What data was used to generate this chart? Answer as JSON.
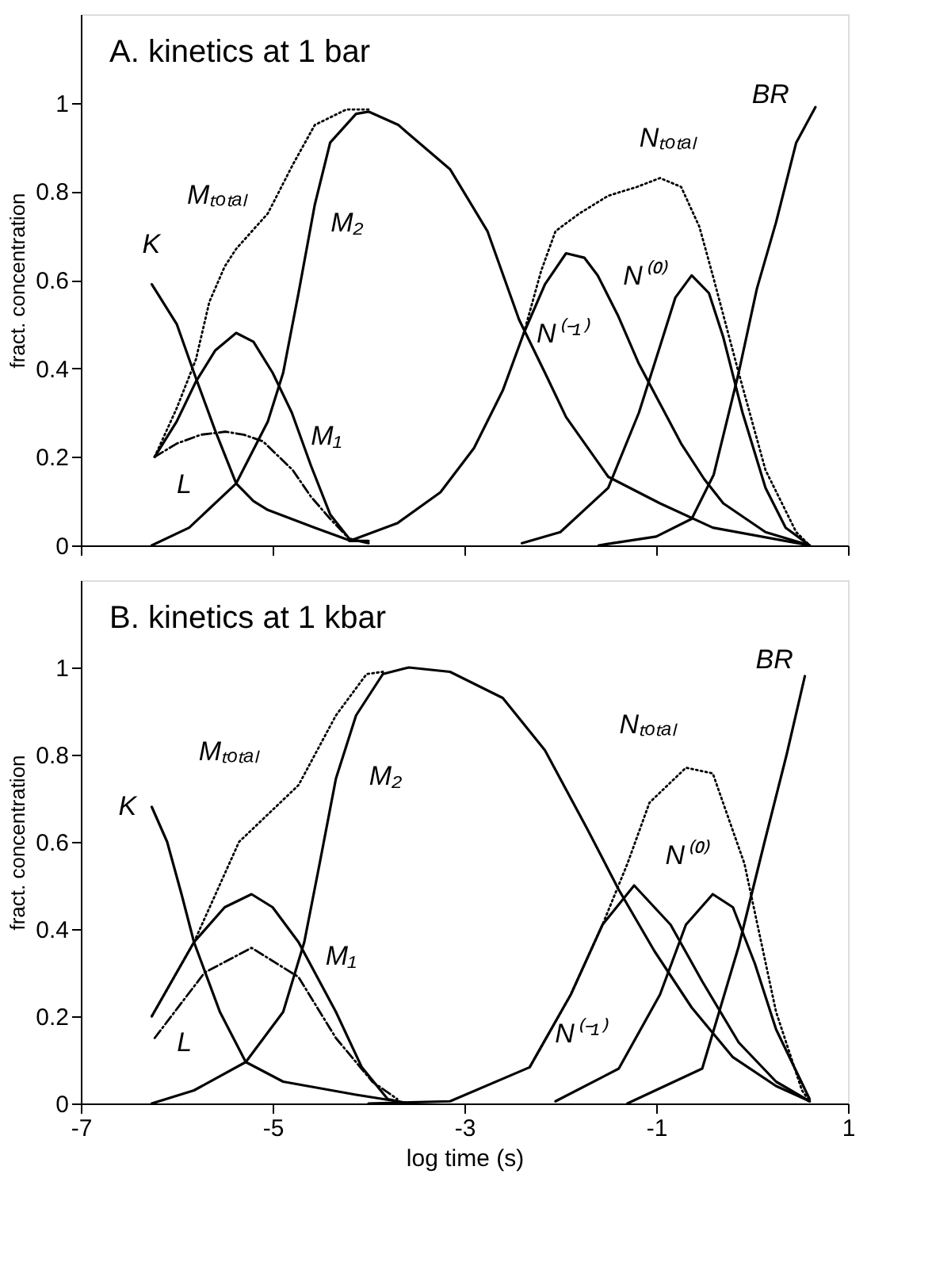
{
  "chart_data": [
    {
      "type": "line",
      "title": "A. kinetics at 1 bar",
      "ylabel": "fract. concentration",
      "xlim": [
        -7,
        1
      ],
      "ylim": [
        0,
        1.2
      ],
      "xticks": [
        -7,
        -5,
        -3,
        -1,
        1
      ],
      "yticks": [
        0,
        0.2,
        0.4,
        0.6,
        0.8,
        1
      ],
      "tick_labels": "y",
      "grid": false,
      "marker": "none",
      "series": [
        {
          "color": "#000000",
          "line_style": "solid",
          "x": [
            -6.26,
            -6.0,
            -5.82,
            -5.6,
            -5.38,
            -5.2,
            -5.05,
            -4.56,
            -4.18,
            -4.0
          ],
          "values": [
            0.59,
            0.5,
            0.39,
            0.26,
            0.14,
            0.1,
            0.08,
            0.04,
            0.01,
            0.01
          ]
        },
        {
          "color": "#000000",
          "line_style": "dashed",
          "x": [
            -6.23,
            -6.0,
            -5.75,
            -5.49,
            -5.3,
            -5.1,
            -4.79,
            -4.6,
            -4.4,
            -4.18
          ],
          "values": [
            0.2,
            0.23,
            0.25,
            0.257,
            0.25,
            0.235,
            0.17,
            0.11,
            0.06,
            0.01
          ]
        },
        {
          "color": "#000000",
          "line_style": "solid",
          "x": [
            -6.23,
            -6.0,
            -5.8,
            -5.6,
            -5.38,
            -5.2,
            -5.0,
            -4.8,
            -4.6,
            -4.4,
            -4.2,
            -4.0
          ],
          "values": [
            0.2,
            0.28,
            0.37,
            0.44,
            0.48,
            0.46,
            0.39,
            0.3,
            0.18,
            0.07,
            0.015,
            0.005
          ]
        },
        {
          "color": "#000000",
          "line_style": "solid",
          "x": [
            -6.26,
            -5.87,
            -5.38,
            -5.05,
            -4.89,
            -4.73,
            -4.56,
            -4.4,
            -4.13,
            -4.0,
            -3.69,
            -3.15,
            -2.76,
            -2.43,
            -2.16,
            -1.94,
            -1.5,
            -0.96,
            -0.41,
            0.6
          ],
          "values": [
            0.0,
            0.04,
            0.14,
            0.28,
            0.39,
            0.57,
            0.77,
            0.91,
            0.975,
            0.98,
            0.95,
            0.85,
            0.71,
            0.51,
            0.39,
            0.29,
            0.155,
            0.095,
            0.04,
            0.0
          ]
        },
        {
          "color": "#000000",
          "line_style": "dotted",
          "x": [
            -6.23,
            -6.0,
            -5.8,
            -5.66,
            -5.5,
            -5.38,
            -5.05,
            -4.79,
            -4.56,
            -4.23,
            -4.0
          ],
          "values": [
            0.2,
            0.31,
            0.42,
            0.55,
            0.63,
            0.67,
            0.75,
            0.86,
            0.95,
            0.985,
            0.985
          ]
        },
        {
          "color": "#000000",
          "line_style": "solid",
          "x": [
            -4.2,
            -3.7,
            -3.25,
            -2.9,
            -2.6,
            -2.38,
            -2.16,
            -1.94,
            -1.75,
            -1.61,
            -1.4,
            -1.18,
            -0.96,
            -0.74,
            -0.5,
            -0.3,
            0.14,
            0.6
          ],
          "values": [
            0.01,
            0.05,
            0.12,
            0.22,
            0.35,
            0.48,
            0.59,
            0.66,
            0.65,
            0.61,
            0.52,
            0.41,
            0.32,
            0.23,
            0.15,
            0.095,
            0.03,
            0.0
          ]
        },
        {
          "color": "#000000",
          "line_style": "dotted",
          "x": [
            -2.38,
            -2.2,
            -2.05,
            -1.8,
            -1.5,
            -1.2,
            -0.96,
            -0.74,
            -0.55,
            -0.41,
            -0.14,
            0.14,
            0.46,
            0.6
          ],
          "values": [
            0.48,
            0.62,
            0.71,
            0.75,
            0.79,
            0.81,
            0.83,
            0.81,
            0.72,
            0.61,
            0.39,
            0.17,
            0.03,
            0.0
          ]
        },
        {
          "color": "#000000",
          "line_style": "solid",
          "x": [
            -2.4,
            -2.0,
            -1.5,
            -1.18,
            -0.96,
            -0.8,
            -0.63,
            -0.45,
            -0.3,
            -0.1,
            0.14,
            0.35,
            0.6
          ],
          "values": [
            0.005,
            0.03,
            0.13,
            0.3,
            0.45,
            0.56,
            0.61,
            0.57,
            0.47,
            0.3,
            0.13,
            0.04,
            0.0
          ]
        },
        {
          "color": "#000000",
          "line_style": "solid",
          "x": [
            -1.6,
            -1.0,
            -0.63,
            -0.4,
            -0.14,
            0.05,
            0.25,
            0.46,
            0.66
          ],
          "values": [
            0.0,
            0.02,
            0.06,
            0.16,
            0.39,
            0.58,
            0.73,
            0.91,
            0.99
          ]
        }
      ],
      "annotations": [
        {
          "text": "K",
          "x": -6.26,
          "y": 0.59
        },
        {
          "text": "Mₜₒₜₐₗ",
          "x": -5.05,
          "y": 0.75
        },
        {
          "text": "M₂",
          "x": -4.56,
          "y": 0.77
        },
        {
          "text": "M₁",
          "x": -4.8,
          "y": 0.3
        },
        {
          "text": "L",
          "x": -6.0,
          "y": 0.23
        },
        {
          "text": "N⁽⁻¹⁾",
          "x": -2.38,
          "y": 0.48
        },
        {
          "text": "N⁽⁰⁾",
          "x": -0.8,
          "y": 0.56
        },
        {
          "text": "Nₜₒₜₐₗ",
          "x": -0.96,
          "y": 0.83
        },
        {
          "text": "BR",
          "x": 0.46,
          "y": 0.91
        }
      ]
    },
    {
      "type": "line",
      "title": "B. kinetics at 1 kbar",
      "xlabel": "log time (s)",
      "ylabel": "fract. concentration",
      "xlim": [
        -7,
        1
      ],
      "ylim": [
        0,
        1.2
      ],
      "xticks": [
        -7,
        -5,
        -3,
        -1,
        1
      ],
      "yticks": [
        0,
        0.2,
        0.4,
        0.6,
        0.8,
        1
      ],
      "grid": false,
      "marker": "none",
      "series": [
        {
          "color": "#000000",
          "line_style": "solid",
          "x": [
            -6.26,
            -6.1,
            -5.95,
            -5.82,
            -5.55,
            -5.28,
            -4.89,
            -4.13,
            -3.7
          ],
          "values": [
            0.68,
            0.6,
            0.48,
            0.37,
            0.21,
            0.095,
            0.05,
            0.02,
            0.005
          ]
        },
        {
          "color": "#000000",
          "line_style": "dashed",
          "x": [
            -6.23,
            -5.71,
            -5.22,
            -4.73,
            -4.34,
            -3.96,
            -3.7
          ],
          "values": [
            0.15,
            0.3,
            0.357,
            0.29,
            0.15,
            0.05,
            0.01
          ]
        },
        {
          "color": "#000000",
          "line_style": "solid",
          "x": [
            -6.26,
            -5.82,
            -5.5,
            -5.22,
            -5.0,
            -4.73,
            -4.34,
            -4.07,
            -3.8,
            -3.58
          ],
          "values": [
            0.2,
            0.37,
            0.45,
            0.48,
            0.45,
            0.37,
            0.21,
            0.083,
            0.01,
            0.0
          ]
        },
        {
          "color": "#000000",
          "line_style": "solid",
          "x": [
            -6.26,
            -5.82,
            -5.28,
            -4.89,
            -4.67,
            -4.51,
            -4.34,
            -4.13,
            -3.85,
            -3.58,
            -3.15,
            -2.6,
            -2.16,
            -1.72,
            -1.39,
            -1.02,
            -0.63,
            -0.2,
            0.25,
            0.6
          ],
          "values": [
            0.0,
            0.03,
            0.095,
            0.21,
            0.37,
            0.55,
            0.745,
            0.89,
            0.985,
            1.0,
            0.99,
            0.93,
            0.81,
            0.63,
            0.49,
            0.35,
            0.22,
            0.106,
            0.04,
            0.005
          ]
        },
        {
          "color": "#000000",
          "line_style": "dotted",
          "x": [
            -6.26,
            -5.82,
            -5.35,
            -4.73,
            -4.34,
            -4.02,
            -3.85
          ],
          "values": [
            0.2,
            0.37,
            0.6,
            0.73,
            0.89,
            0.985,
            0.99
          ]
        },
        {
          "color": "#000000",
          "line_style": "solid",
          "x": [
            -4.0,
            -3.15,
            -2.32,
            -1.89,
            -1.56,
            -1.23,
            -0.85,
            -0.52,
            -0.14,
            0.25,
            0.6
          ],
          "values": [
            0.0,
            0.005,
            0.083,
            0.25,
            0.41,
            0.5,
            0.41,
            0.28,
            0.14,
            0.05,
            0.005
          ]
        },
        {
          "color": "#000000",
          "line_style": "dotted",
          "x": [
            -2.32,
            -1.89,
            -1.56,
            -1.3,
            -1.07,
            -0.69,
            -0.41,
            -0.08,
            0.25,
            0.52,
            0.6
          ],
          "values": [
            0.083,
            0.25,
            0.41,
            0.55,
            0.69,
            0.77,
            0.757,
            0.55,
            0.21,
            0.03,
            0.005
          ]
        },
        {
          "color": "#000000",
          "line_style": "solid",
          "x": [
            -2.05,
            -1.39,
            -0.96,
            -0.69,
            -0.41,
            -0.2,
            0.03,
            0.25,
            0.6
          ],
          "values": [
            0.005,
            0.08,
            0.25,
            0.41,
            0.48,
            0.45,
            0.32,
            0.17,
            0.01
          ]
        },
        {
          "color": "#000000",
          "line_style": "solid",
          "x": [
            -1.3,
            -0.52,
            -0.14,
            0.13,
            0.36,
            0.55
          ],
          "values": [
            0.0,
            0.08,
            0.36,
            0.6,
            0.8,
            0.98
          ]
        }
      ],
      "annotations": [
        {
          "text": "K",
          "x": -6.26,
          "y": 0.68
        },
        {
          "text": "Mₜₒₜₐₗ",
          "x": -4.73,
          "y": 0.73
        },
        {
          "text": "M₂",
          "x": -4.34,
          "y": 0.745
        },
        {
          "text": "M₁",
          "x": -4.73,
          "y": 0.37
        },
        {
          "text": "L",
          "x": -6.23,
          "y": 0.15
        },
        {
          "text": "N⁽⁻¹⁾",
          "x": -1.89,
          "y": 0.25
        },
        {
          "text": "N⁽⁰⁾",
          "x": -0.41,
          "y": 0.48
        },
        {
          "text": "Nₜₒₜₐₗ",
          "x": -0.69,
          "y": 0.77
        },
        {
          "text": "BR",
          "x": 0.55,
          "y": 0.98
        }
      ]
    }
  ]
}
